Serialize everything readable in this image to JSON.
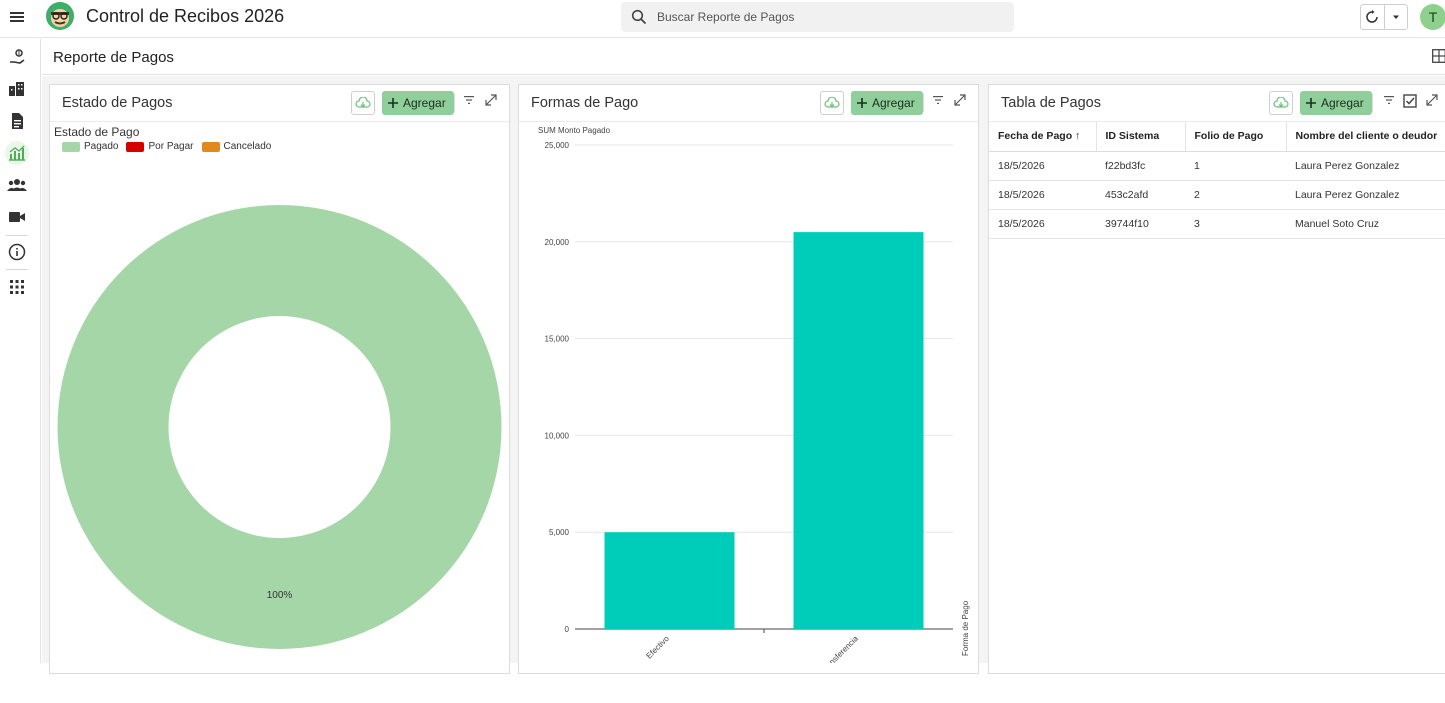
{
  "app": {
    "title": "Control de Recibos 2026",
    "search_placeholder": "Buscar Reporte de Pagos",
    "user_initial": "T",
    "accent_color": "#8fcf9b"
  },
  "page": {
    "title": "Reporte de Pagos"
  },
  "panels": {
    "estado": {
      "title": "Estado de Pagos",
      "add_label": "Agregar",
      "legend_title": "Estado de Pago",
      "legend": [
        {
          "label": "Pagado",
          "color": "#a5d6a7"
        },
        {
          "label": "Por Pagar",
          "color": "#d50000"
        },
        {
          "label": "Cancelado",
          "color": "#e08a1e"
        }
      ]
    },
    "formas": {
      "title": "Formas de Pago",
      "add_label": "Agregar"
    },
    "tabla": {
      "title": "Tabla de Pagos",
      "add_label": "Agregar",
      "columns": [
        "Fecha de Pago",
        "ID Sistema",
        "Folio de Pago",
        "Nombre del cliente o deudor"
      ],
      "sort_indicator": "↑",
      "rows": [
        [
          "18/5/2026",
          "f22bd3fc",
          "1",
          "Laura Perez Gonzalez"
        ],
        [
          "18/5/2026",
          "453c2afd",
          "2",
          "Laura Perez Gonzalez"
        ],
        [
          "18/5/2026",
          "39744f10",
          "3",
          "Manuel Soto Cruz"
        ]
      ]
    }
  },
  "chart_data": [
    {
      "type": "pie",
      "style": "donut",
      "legend_title": "Estado de Pago",
      "slices": [
        {
          "label": "Pagado",
          "value": 100,
          "color": "#a5d6a7"
        },
        {
          "label": "Por Pagar",
          "value": 0,
          "color": "#d50000"
        },
        {
          "label": "Cancelado",
          "value": 0,
          "color": "#e08a1e"
        }
      ],
      "data_labels": [
        "100%"
      ]
    },
    {
      "type": "bar",
      "ylabel": "SUM Monto Pagado",
      "xlabel": "Forma de Pago",
      "categories": [
        "Efectivo",
        "Transferencia"
      ],
      "values": [
        5000,
        20500
      ],
      "ylim": [
        0,
        25000
      ],
      "yticks": [
        "0",
        "5,000",
        "10,000",
        "15,000",
        "20,000",
        "25,000"
      ],
      "bar_color": "#00cdb9",
      "grid": true
    }
  ]
}
